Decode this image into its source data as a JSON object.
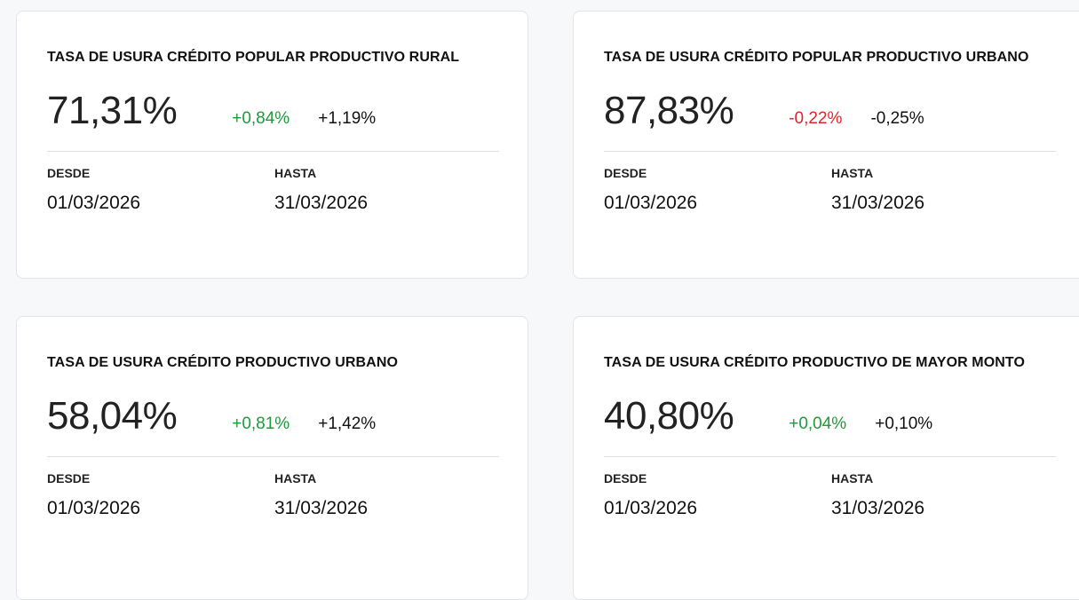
{
  "cards": [
    {
      "title": "TASA DE USURA CRÉDITO POPULAR PRODUCTIVO RURAL",
      "value": "71,31%",
      "change_1": "+0,84%",
      "change_1_color": "#1f9a3b",
      "change_2": "+1,19%",
      "from_label": "DESDE",
      "from": "01/03/2026",
      "to_label": "HASTA",
      "to": "31/03/2026"
    },
    {
      "title": "TASA DE USURA CRÉDITO POPULAR PRODUCTIVO URBANO",
      "value": "87,83%",
      "change_1": "-0,22%",
      "change_1_color": "#e3232b",
      "change_2": "-0,25%",
      "from_label": "DESDE",
      "from": "01/03/2026",
      "to_label": "HASTA",
      "to": "31/03/2026"
    },
    {
      "title": "TASA DE USURA CRÉDITO PRODUCTIVO URBANO",
      "value": "58,04%",
      "change_1": "+0,81%",
      "change_1_color": "#1f9a3b",
      "change_2": "+1,42%",
      "from_label": "DESDE",
      "from": "01/03/2026",
      "to_label": "HASTA",
      "to": "31/03/2026"
    },
    {
      "title": "TASA DE USURA CRÉDITO PRODUCTIVO DE MAYOR MONTO",
      "value": "40,80%",
      "change_1": "+0,04%",
      "change_1_color": "#1f9a3b",
      "change_2": "+0,10%",
      "from_label": "DESDE",
      "from": "01/03/2026",
      "to_label": "HASTA",
      "to": "31/03/2026"
    }
  ]
}
